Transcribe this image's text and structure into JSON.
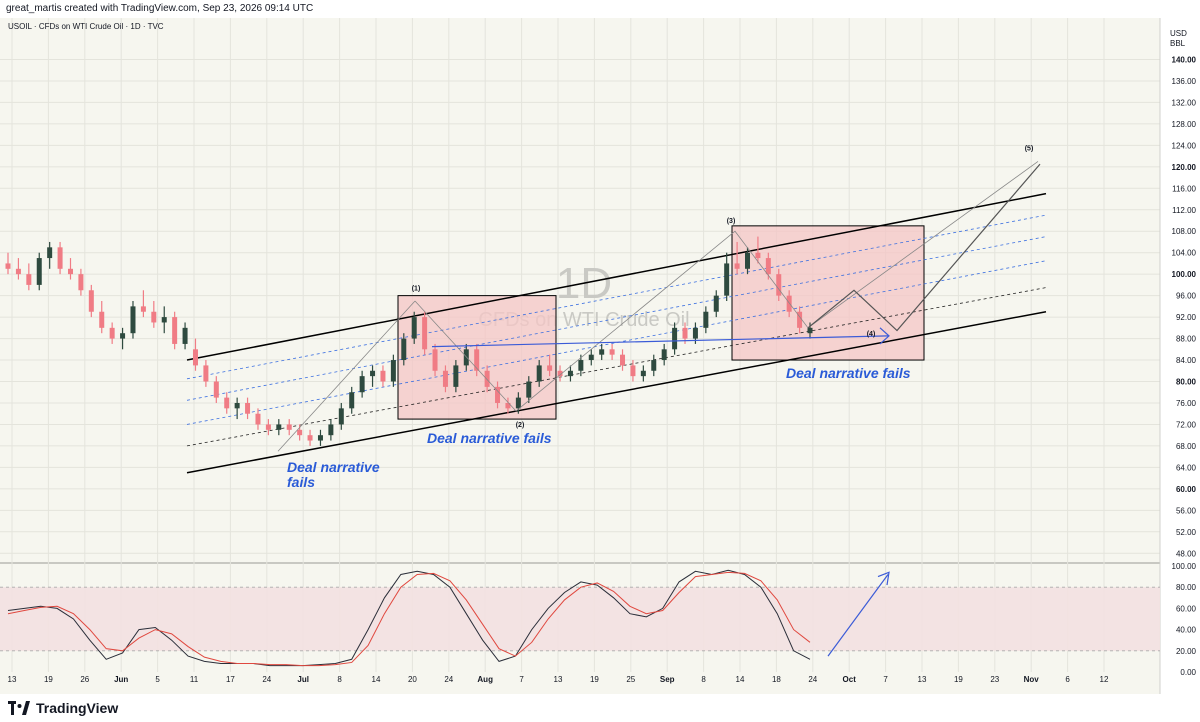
{
  "header": {
    "created_by": "great_martis created with TradingView.com, Sep 23, 2026 09:14 UTC",
    "symbol_line": "USOIL · CFDs on WTI Crude Oil · 1D · TVC"
  },
  "watermark": {
    "interval": "1D",
    "name": "CFDs on WTI Crude Oil"
  },
  "price_axis": {
    "currency": "USD",
    "unit": "BBL"
  },
  "colors": {
    "up": "#2e4a3f",
    "down": "#f07c85",
    "box_fill": "#f4c6c6",
    "osc_k": "#2a2e39",
    "osc_d": "#e0483f",
    "label_blue": "#2a5bd7",
    "osc_band": "#f3e1e1"
  },
  "annotations": {
    "deal1_line1": "Deal narrative",
    "deal1_line2": "fails",
    "deal2": "Deal narrative fails",
    "deal3": "Deal narrative fails",
    "wave1": "(1)",
    "wave2": "(2)",
    "wave3": "(3)",
    "wave4": "(4)",
    "wave5": "(5)"
  },
  "chart_data": [
    {
      "type": "candlestick",
      "title": "USOIL · CFDs on WTI Crude Oil · 1D · TVC",
      "y_axis_side": "right",
      "ylim": [
        46,
        144
      ],
      "y_ticks": [
        48,
        52,
        56,
        60,
        64,
        68,
        72,
        76,
        80,
        84,
        88,
        92,
        96,
        100,
        104,
        108,
        112,
        116,
        120,
        124,
        128,
        132,
        136,
        140
      ],
      "y_ticks_bold": [
        60,
        80,
        100,
        120,
        140
      ],
      "x_ticks": [
        "13",
        "19",
        "26",
        "Jun",
        "5",
        "11",
        "17",
        "24",
        "Jul",
        "8",
        "14",
        "20",
        "24",
        "Aug",
        "7",
        "13",
        "19",
        "25",
        "Sep",
        "8",
        "14",
        "18",
        "24",
        "Oct",
        "7",
        "13",
        "19",
        "23",
        "Nov",
        "6",
        "12"
      ],
      "x_ticks_bold": [
        "Jun",
        "Jul",
        "Aug",
        "Sep",
        "Oct",
        "Nov"
      ],
      "series_ohlc": [
        {
          "o": 102,
          "h": 104,
          "l": 100,
          "c": 101
        },
        {
          "o": 101,
          "h": 103,
          "l": 99,
          "c": 100
        },
        {
          "o": 100,
          "h": 102,
          "l": 97,
          "c": 98
        },
        {
          "o": 98,
          "h": 104,
          "l": 97,
          "c": 103
        },
        {
          "o": 103,
          "h": 106,
          "l": 101,
          "c": 105
        },
        {
          "o": 105,
          "h": 106,
          "l": 100,
          "c": 101
        },
        {
          "o": 101,
          "h": 103,
          "l": 99,
          "c": 100
        },
        {
          "o": 100,
          "h": 101,
          "l": 96,
          "c": 97
        },
        {
          "o": 97,
          "h": 98,
          "l": 92,
          "c": 93
        },
        {
          "o": 93,
          "h": 95,
          "l": 89,
          "c": 90
        },
        {
          "o": 90,
          "h": 91,
          "l": 87,
          "c": 88
        },
        {
          "o": 88,
          "h": 90,
          "l": 86,
          "c": 89
        },
        {
          "o": 89,
          "h": 95,
          "l": 88,
          "c": 94
        },
        {
          "o": 94,
          "h": 97,
          "l": 92,
          "c": 93
        },
        {
          "o": 93,
          "h": 95,
          "l": 90,
          "c": 91
        },
        {
          "o": 91,
          "h": 94,
          "l": 89,
          "c": 92
        },
        {
          "o": 92,
          "h": 93,
          "l": 86,
          "c": 87
        },
        {
          "o": 87,
          "h": 91,
          "l": 86,
          "c": 90
        },
        {
          "o": 86,
          "h": 88,
          "l": 82,
          "c": 83
        },
        {
          "o": 83,
          "h": 84,
          "l": 79,
          "c": 80
        },
        {
          "o": 80,
          "h": 81,
          "l": 76,
          "c": 77
        },
        {
          "o": 77,
          "h": 78,
          "l": 74,
          "c": 75
        },
        {
          "o": 75,
          "h": 77,
          "l": 73,
          "c": 76
        },
        {
          "o": 76,
          "h": 77,
          "l": 73,
          "c": 74
        },
        {
          "o": 74,
          "h": 75,
          "l": 71,
          "c": 72
        },
        {
          "o": 72,
          "h": 73,
          "l": 70,
          "c": 71
        },
        {
          "o": 71,
          "h": 73,
          "l": 70,
          "c": 72
        },
        {
          "o": 72,
          "h": 73,
          "l": 70,
          "c": 71
        },
        {
          "o": 71,
          "h": 72,
          "l": 69,
          "c": 70
        },
        {
          "o": 70,
          "h": 71,
          "l": 68,
          "c": 69
        },
        {
          "o": 69,
          "h": 71,
          "l": 68,
          "c": 70
        },
        {
          "o": 70,
          "h": 73,
          "l": 69,
          "c": 72
        },
        {
          "o": 72,
          "h": 76,
          "l": 71,
          "c": 75
        },
        {
          "o": 75,
          "h": 79,
          "l": 74,
          "c": 78
        },
        {
          "o": 78,
          "h": 82,
          "l": 77,
          "c": 81
        },
        {
          "o": 81,
          "h": 83,
          "l": 79,
          "c": 82
        },
        {
          "o": 82,
          "h": 83,
          "l": 79,
          "c": 80
        },
        {
          "o": 80,
          "h": 85,
          "l": 79,
          "c": 84
        },
        {
          "o": 84,
          "h": 89,
          "l": 83,
          "c": 88
        },
        {
          "o": 88,
          "h": 93,
          "l": 87,
          "c": 92
        },
        {
          "o": 92,
          "h": 93,
          "l": 85,
          "c": 86
        },
        {
          "o": 86,
          "h": 87,
          "l": 81,
          "c": 82
        },
        {
          "o": 82,
          "h": 83,
          "l": 78,
          "c": 79
        },
        {
          "o": 79,
          "h": 84,
          "l": 78,
          "c": 83
        },
        {
          "o": 83,
          "h": 87,
          "l": 82,
          "c": 86
        },
        {
          "o": 86,
          "h": 87,
          "l": 81,
          "c": 82
        },
        {
          "o": 82,
          "h": 83,
          "l": 78,
          "c": 79
        },
        {
          "o": 79,
          "h": 80,
          "l": 75,
          "c": 76
        },
        {
          "o": 76,
          "h": 77,
          "l": 74,
          "c": 75
        },
        {
          "o": 75,
          "h": 78,
          "l": 74,
          "c": 77
        },
        {
          "o": 77,
          "h": 81,
          "l": 76,
          "c": 80
        },
        {
          "o": 80,
          "h": 84,
          "l": 79,
          "c": 83
        },
        {
          "o": 83,
          "h": 85,
          "l": 81,
          "c": 82
        },
        {
          "o": 82,
          "h": 83,
          "l": 80,
          "c": 81
        },
        {
          "o": 81,
          "h": 83,
          "l": 80,
          "c": 82
        },
        {
          "o": 82,
          "h": 85,
          "l": 81,
          "c": 84
        },
        {
          "o": 84,
          "h": 86,
          "l": 83,
          "c": 85
        },
        {
          "o": 85,
          "h": 87,
          "l": 84,
          "c": 86
        },
        {
          "o": 86,
          "h": 87,
          "l": 84,
          "c": 85
        },
        {
          "o": 85,
          "h": 86,
          "l": 82,
          "c": 83
        },
        {
          "o": 83,
          "h": 84,
          "l": 80,
          "c": 81
        },
        {
          "o": 81,
          "h": 83,
          "l": 80,
          "c": 82
        },
        {
          "o": 82,
          "h": 85,
          "l": 81,
          "c": 84
        },
        {
          "o": 84,
          "h": 87,
          "l": 83,
          "c": 86
        },
        {
          "o": 86,
          "h": 91,
          "l": 85,
          "c": 90
        },
        {
          "o": 90,
          "h": 91,
          "l": 87,
          "c": 88
        },
        {
          "o": 88,
          "h": 91,
          "l": 87,
          "c": 90
        },
        {
          "o": 90,
          "h": 94,
          "l": 89,
          "c": 93
        },
        {
          "o": 93,
          "h": 97,
          "l": 92,
          "c": 96
        },
        {
          "o": 96,
          "h": 104,
          "l": 95,
          "c": 102
        },
        {
          "o": 102,
          "h": 106,
          "l": 100,
          "c": 101
        },
        {
          "o": 101,
          "h": 105,
          "l": 100,
          "c": 104
        },
        {
          "o": 104,
          "h": 107,
          "l": 102,
          "c": 103
        },
        {
          "o": 103,
          "h": 104,
          "l": 99,
          "c": 100
        },
        {
          "o": 100,
          "h": 101,
          "l": 95,
          "c": 96
        },
        {
          "o": 96,
          "h": 97,
          "l": 92,
          "c": 93
        },
        {
          "o": 93,
          "h": 94,
          "l": 89,
          "c": 90
        },
        {
          "o": 89,
          "h": 91,
          "l": 88,
          "c": 90
        }
      ],
      "wave_path": [
        [
          920,
          115
        ],
        [
          1020,
          117
        ],
        [
          1120,
          113
        ],
        [
          1230,
          128
        ]
      ],
      "channel": {
        "lower_start": [
          0,
          63
        ],
        "lower_end": [
          1,
          93
        ],
        "upper_start": [
          0,
          84
        ],
        "upper_end": [
          1,
          115
        ]
      }
    },
    {
      "type": "line",
      "title": "Stochastic oscillator",
      "ylim": [
        0,
        100
      ],
      "y_ticks": [
        0,
        20,
        40,
        60,
        80,
        100
      ],
      "bands": [
        20,
        80
      ],
      "series": [
        {
          "values": [
            58,
            60,
            62,
            60,
            50,
            30,
            12,
            18,
            40,
            42,
            30,
            15,
            10,
            8,
            8,
            8,
            6,
            6,
            6,
            7,
            8,
            12,
            40,
            70,
            92,
            95,
            92,
            80,
            55,
            30,
            10,
            15,
            40,
            60,
            75,
            85,
            82,
            70,
            55,
            52,
            60,
            85,
            95,
            92,
            96,
            92,
            80,
            55,
            20,
            12
          ]
        },
        {
          "values": [
            55,
            58,
            61,
            62,
            55,
            40,
            22,
            20,
            32,
            40,
            36,
            24,
            14,
            10,
            8,
            8,
            7,
            7,
            6,
            6,
            7,
            9,
            25,
            55,
            80,
            92,
            93,
            86,
            68,
            45,
            22,
            15,
            28,
            50,
            68,
            80,
            84,
            76,
            62,
            55,
            58,
            75,
            90,
            92,
            94,
            93,
            86,
            68,
            40,
            28
          ]
        }
      ]
    }
  ]
}
